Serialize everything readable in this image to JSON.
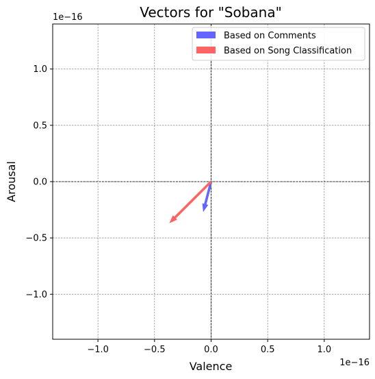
{
  "chart_data": {
    "type": "quiver",
    "title": "Vectors for \"Sobana\"",
    "xlabel": "Valence",
    "ylabel": "Arousal",
    "x_offset_label": "1e−16",
    "y_offset_label": "1e−16",
    "xlim": [
      -1.4,
      1.4
    ],
    "ylim": [
      -1.4,
      1.4
    ],
    "scale_note": "values shown in units of 1e-16",
    "xticks": [
      -1.0,
      -0.5,
      0.0,
      0.5,
      1.0
    ],
    "yticks": [
      -1.0,
      -0.5,
      0.0,
      0.5,
      1.0
    ],
    "xtick_labels": [
      "−1.0",
      "−0.5",
      "0.0",
      "0.5",
      "1.0"
    ],
    "ytick_labels": [
      "−1.0",
      "−0.5",
      "0.0",
      "0.5",
      "1.0"
    ],
    "grid": true,
    "legend_position": "top-right",
    "series": [
      {
        "name": "Based on Comments",
        "color": "#6464ff",
        "x0": 0.0,
        "y0": 0.0,
        "dx": -0.07,
        "dy": -0.27
      },
      {
        "name": "Based on Song Classification",
        "color": "#ff6464",
        "x0": 0.0,
        "y0": 0.0,
        "dx": -0.37,
        "dy": -0.37
      }
    ]
  }
}
